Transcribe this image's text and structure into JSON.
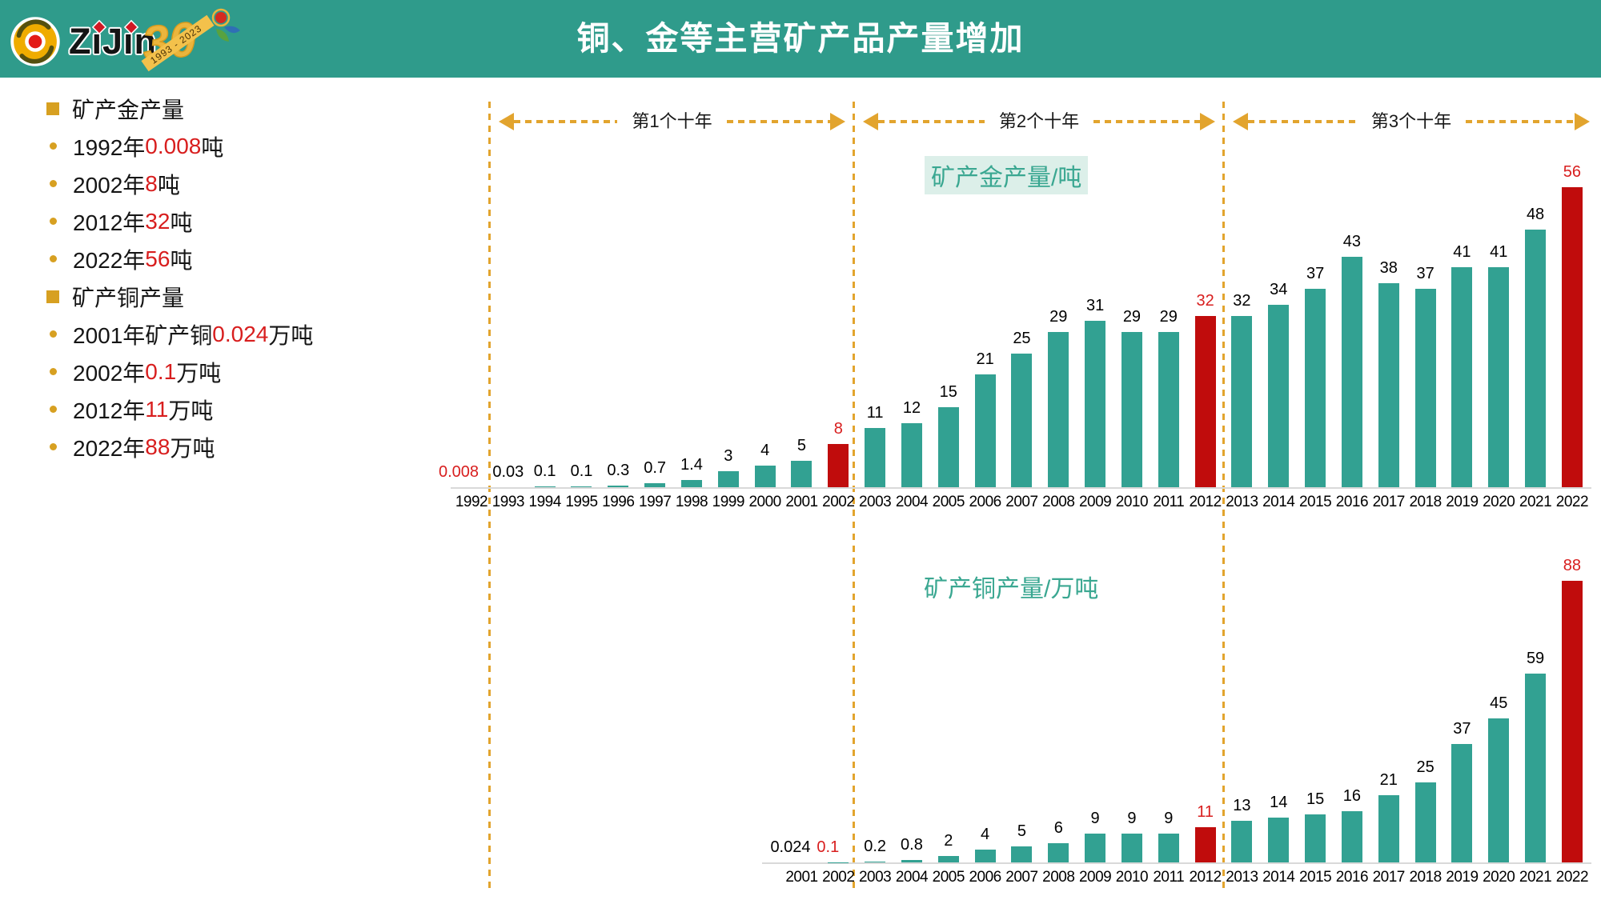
{
  "slide_title": "铜、金等主营矿产品产量增加",
  "brand": {
    "name": "ZiJin",
    "anniversary_number": "30",
    "anniversary_years": "1993 - 2023"
  },
  "colors": {
    "header_teal": "#2F9B8B",
    "bar_teal": "#32A192",
    "bar_red": "#C00C0C",
    "red_text": "#D81E1E",
    "gold_accent": "#E2A42E",
    "chart_title_teal": "#3AA791",
    "baseline_gray": "#D9D9D9"
  },
  "bullets": [
    {
      "bullet": "square",
      "parts": [
        {
          "t": "矿产金产量",
          "c": "k"
        }
      ]
    },
    {
      "bullet": "dot",
      "parts": [
        {
          "t": "1992年",
          "c": "k"
        },
        {
          "t": "0.008",
          "c": "r"
        },
        {
          "t": "吨",
          "c": "k"
        }
      ]
    },
    {
      "bullet": "dot",
      "parts": [
        {
          "t": "2002年",
          "c": "k"
        },
        {
          "t": "8",
          "c": "r"
        },
        {
          "t": "吨",
          "c": "k"
        }
      ]
    },
    {
      "bullet": "dot",
      "parts": [
        {
          "t": "2012年",
          "c": "k"
        },
        {
          "t": "32",
          "c": "r"
        },
        {
          "t": "吨",
          "c": "k"
        }
      ]
    },
    {
      "bullet": "dot",
      "parts": [
        {
          "t": "2022年",
          "c": "k"
        },
        {
          "t": "56",
          "c": "r"
        },
        {
          "t": "吨",
          "c": "k"
        }
      ]
    },
    {
      "bullet": "square",
      "parts": [
        {
          "t": "矿产铜产量",
          "c": "k"
        }
      ]
    },
    {
      "bullet": "dot",
      "parts": [
        {
          "t": "2001年矿产铜",
          "c": "k"
        },
        {
          "t": "0.024",
          "c": "r"
        },
        {
          "t": "万吨",
          "c": "k"
        }
      ]
    },
    {
      "bullet": "dot",
      "parts": [
        {
          "t": "2002年",
          "c": "k"
        },
        {
          "t": "0.1",
          "c": "r"
        },
        {
          "t": "万吨",
          "c": "k"
        }
      ]
    },
    {
      "bullet": "dot",
      "parts": [
        {
          "t": "2012年",
          "c": "k"
        },
        {
          "t": "11",
          "c": "r"
        },
        {
          "t": "万吨",
          "c": "k"
        }
      ]
    },
    {
      "bullet": "dot",
      "parts": [
        {
          "t": "2022年",
          "c": "k"
        },
        {
          "t": "88",
          "c": "r"
        },
        {
          "t": "万吨",
          "c": "k"
        }
      ]
    }
  ],
  "decade_labels": [
    "第1个十年",
    "第2个十年",
    "第3个十年"
  ],
  "chart_data": [
    {
      "type": "bar",
      "title": "矿产金产量/吨",
      "ylabel": "矿产金产量",
      "unit": "吨",
      "years": [
        1992,
        1993,
        1994,
        1995,
        1996,
        1997,
        1998,
        1999,
        2000,
        2001,
        2002,
        2003,
        2004,
        2005,
        2006,
        2007,
        2008,
        2009,
        2010,
        2011,
        2012,
        2013,
        2014,
        2015,
        2016,
        2017,
        2018,
        2019,
        2020,
        2021,
        2022
      ],
      "values": [
        0.008,
        0.03,
        0.1,
        0.1,
        0.3,
        0.7,
        1.4,
        3,
        4,
        5,
        8,
        11,
        12,
        15,
        21,
        25,
        29,
        31,
        29,
        29,
        32,
        32,
        34,
        37,
        43,
        38,
        37,
        41,
        41,
        48,
        56
      ],
      "value_labels": [
        "0.008",
        "0.03",
        "0.1",
        "0.1",
        "0.3",
        "0.7",
        "1.4",
        "3",
        "4",
        "5",
        "8",
        "11",
        "12",
        "15",
        "21",
        "25",
        "29",
        "31",
        "29",
        "29",
        "32",
        "32",
        "34",
        "37",
        "43",
        "38",
        "37",
        "41",
        "41",
        "48",
        "56"
      ],
      "highlight_bar_years": [
        2002,
        2012,
        2022
      ],
      "highlight_label_years": [
        1992,
        2002,
        2012,
        2022
      ],
      "grid": false,
      "legend": false
    },
    {
      "type": "bar",
      "title": "矿产铜产量/万吨",
      "ylabel": "矿产铜产量",
      "unit": "万吨",
      "years": [
        2001,
        2002,
        2003,
        2004,
        2005,
        2006,
        2007,
        2008,
        2009,
        2010,
        2011,
        2012,
        2013,
        2014,
        2015,
        2016,
        2017,
        2018,
        2019,
        2020,
        2021,
        2022
      ],
      "values": [
        0.024,
        0.1,
        0.2,
        0.8,
        2,
        4,
        5,
        6,
        9,
        9,
        9,
        11,
        13,
        14,
        15,
        16,
        21,
        25,
        37,
        45,
        59,
        88
      ],
      "value_labels": [
        "0.024",
        "0.1",
        "0.2",
        "0.8",
        "2",
        "4",
        "5",
        "6",
        "9",
        "9",
        "9",
        "11",
        "13",
        "14",
        "15",
        "16",
        "21",
        "25",
        "37",
        "45",
        "59",
        "88"
      ],
      "highlight_bar_years": [
        2012,
        2022
      ],
      "highlight_label_years": [
        2002,
        2012,
        2022
      ],
      "grid": false,
      "legend": false
    }
  ]
}
